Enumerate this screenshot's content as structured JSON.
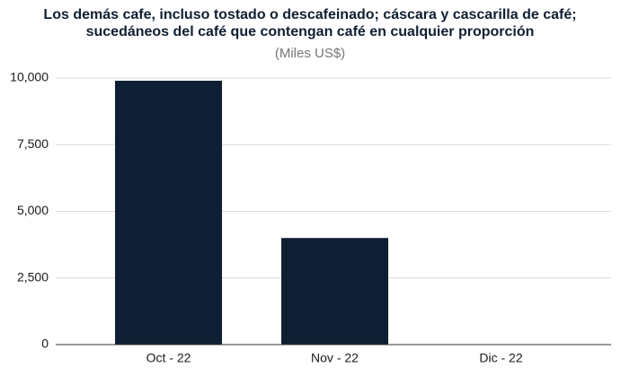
{
  "chart_data": {
    "type": "bar",
    "title": [
      "Los demás cafe, incluso tostado o descafeinado; cáscara y cascarilla de café;",
      "sucedáneos del café que contengan café en cualquier proporción"
    ],
    "subtitle": "(Miles US$)",
    "categories": [
      "Oct - 22",
      "Nov - 22",
      "Dic - 22"
    ],
    "values": [
      9900,
      4000,
      0
    ],
    "color": "#0f1f33",
    "ylim": [
      0,
      10000
    ],
    "yticks": [
      0,
      {
        "value": 2500,
        "label": "2,500"
      },
      {
        "value": 5000,
        "label": "5,000"
      },
      {
        "value": 7500,
        "label": "7,500"
      },
      {
        "value": 10000,
        "label": "10,000"
      }
    ],
    "grid": true
  }
}
